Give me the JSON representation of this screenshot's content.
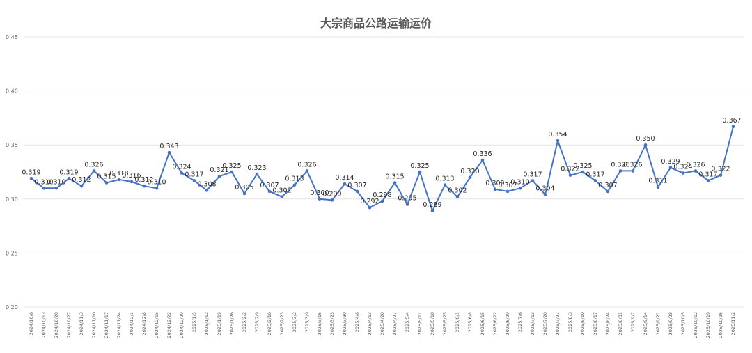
{
  "chart_data": {
    "type": "line",
    "title": "大宗商品公路运输运价",
    "xlabel": "",
    "ylabel": "",
    "ylim": [
      0.2,
      0.45
    ],
    "yticks": [
      "0.20",
      "0.25",
      "0.30",
      "0.35",
      "0.40",
      "0.45"
    ],
    "grid": true,
    "line_color": "#4472c4",
    "categories": [
      "2024/10/6",
      "2024/10/13",
      "2024/10/20",
      "2024/10/27",
      "2024/11/3",
      "2024/11/10",
      "2024/11/17",
      "2024/11/24",
      "2024/12/1",
      "2024/12/8",
      "2024/12/15",
      "2024/12/22",
      "2024/12/29",
      "2025/1/5",
      "2025/1/12",
      "2025/1/19",
      "2025/1/26",
      "2025/2/2",
      "2025/2/9",
      "2025/2/16",
      "2025/2/23",
      "2025/3/2",
      "2025/3/9",
      "2025/3/16",
      "2025/3/23",
      "2025/3/30",
      "2025/4/6",
      "2025/4/13",
      "2025/4/20",
      "2025/4/27",
      "2025/5/4",
      "2025/5/11",
      "2025/5/18",
      "2025/5/25",
      "2025/6/1",
      "2025/6/8",
      "2025/6/15",
      "2025/6/22",
      "2025/6/29",
      "2025/7/6",
      "2025/7/13",
      "2025/7/20",
      "2025/7/27",
      "2025/8/3",
      "2025/8/10",
      "2025/8/17",
      "2025/8/24",
      "2025/8/31",
      "2025/9/7",
      "2025/9/14",
      "2025/9/21",
      "2025/9/28",
      "2025/10/5",
      "2025/10/12",
      "2025/10/19",
      "2025/10/26",
      "2025/11/2"
    ],
    "values": [
      0.319,
      0.31,
      0.31,
      0.319,
      0.312,
      0.326,
      0.315,
      0.318,
      0.316,
      0.312,
      0.31,
      0.343,
      0.324,
      0.317,
      0.308,
      0.321,
      0.325,
      0.305,
      0.323,
      0.307,
      0.302,
      0.313,
      0.326,
      0.3,
      0.299,
      0.314,
      0.307,
      0.292,
      0.298,
      0.315,
      0.295,
      0.325,
      0.289,
      0.313,
      0.302,
      0.32,
      0.336,
      0.309,
      0.307,
      0.31,
      0.317,
      0.304,
      0.354,
      0.322,
      0.325,
      0.317,
      0.307,
      0.326,
      0.326,
      0.35,
      0.311,
      0.329,
      0.324,
      0.326,
      0.317,
      0.322,
      0.367
    ],
    "labels": [
      "0.319",
      "0.310",
      "0.310",
      "0.319",
      "0.312",
      "0.326",
      "0.315",
      "0.318",
      "0.316",
      "0.312",
      "0.310",
      "0.343",
      "0.324",
      "0.317",
      "0.308",
      "0.321",
      "0.325",
      "0.305",
      "0.323",
      "0.307",
      "0.302",
      "0.313",
      "0.326",
      "0.300",
      "0.299",
      "0.314",
      "0.307",
      "0.292",
      "0.298",
      "0.315",
      "0.295",
      "0.325",
      "0.289",
      "0.313",
      "0.302",
      "0.320",
      "0.336",
      "0.309",
      "0.307",
      "0.310",
      "0.317",
      "0.304",
      "0.354",
      "0.322",
      "0.325",
      "0.317",
      "0.307",
      "0.326",
      "0.326",
      "0.350",
      "0.311",
      "0.329",
      "0.324",
      "0.326",
      "0.317",
      "0.322",
      "0.367"
    ]
  }
}
